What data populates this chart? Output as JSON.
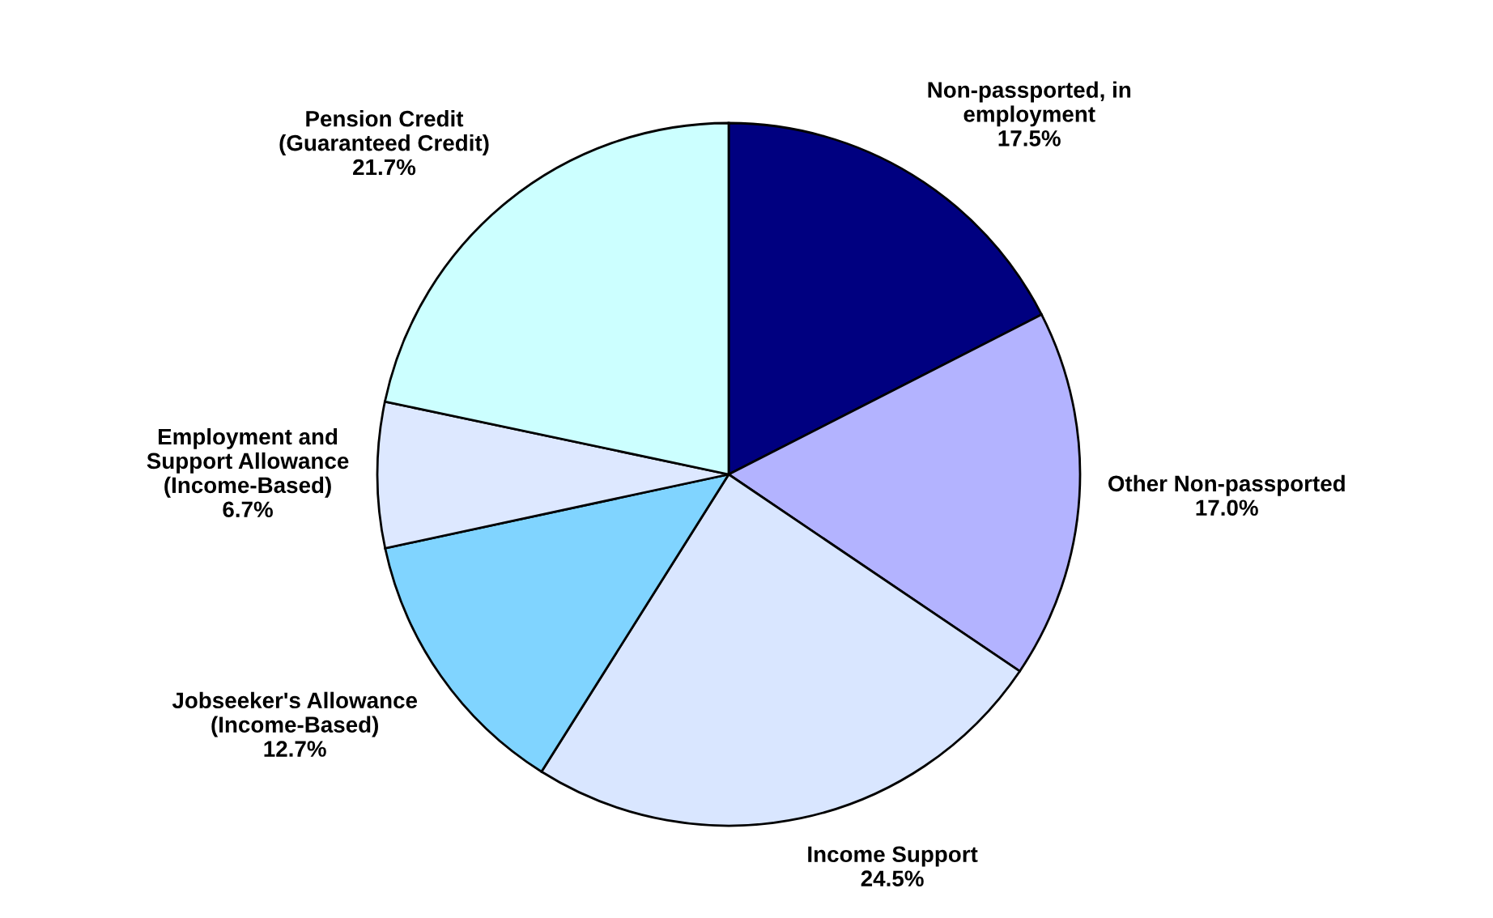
{
  "chart_data": {
    "type": "pie",
    "categories": [
      "Non-passported, in\nemployment",
      "Other Non-passported",
      "Income Support",
      "Jobseeker's Allowance\n(Income-Based)",
      "Employment and\nSupport Allowance\n(Income-Based)",
      "Pension Credit\n(Guaranteed Credit)"
    ],
    "values": [
      17.5,
      17.0,
      24.5,
      12.7,
      6.7,
      21.7
    ],
    "colors": [
      "#000080",
      "#b3b3ff",
      "#d9e6ff",
      "#80d4ff",
      "#dde8ff",
      "#ccffff"
    ],
    "value_labels": [
      "17.5%",
      "17.0%",
      "24.5%",
      "12.7%",
      "6.7%",
      "21.7%"
    ],
    "legend": false
  }
}
